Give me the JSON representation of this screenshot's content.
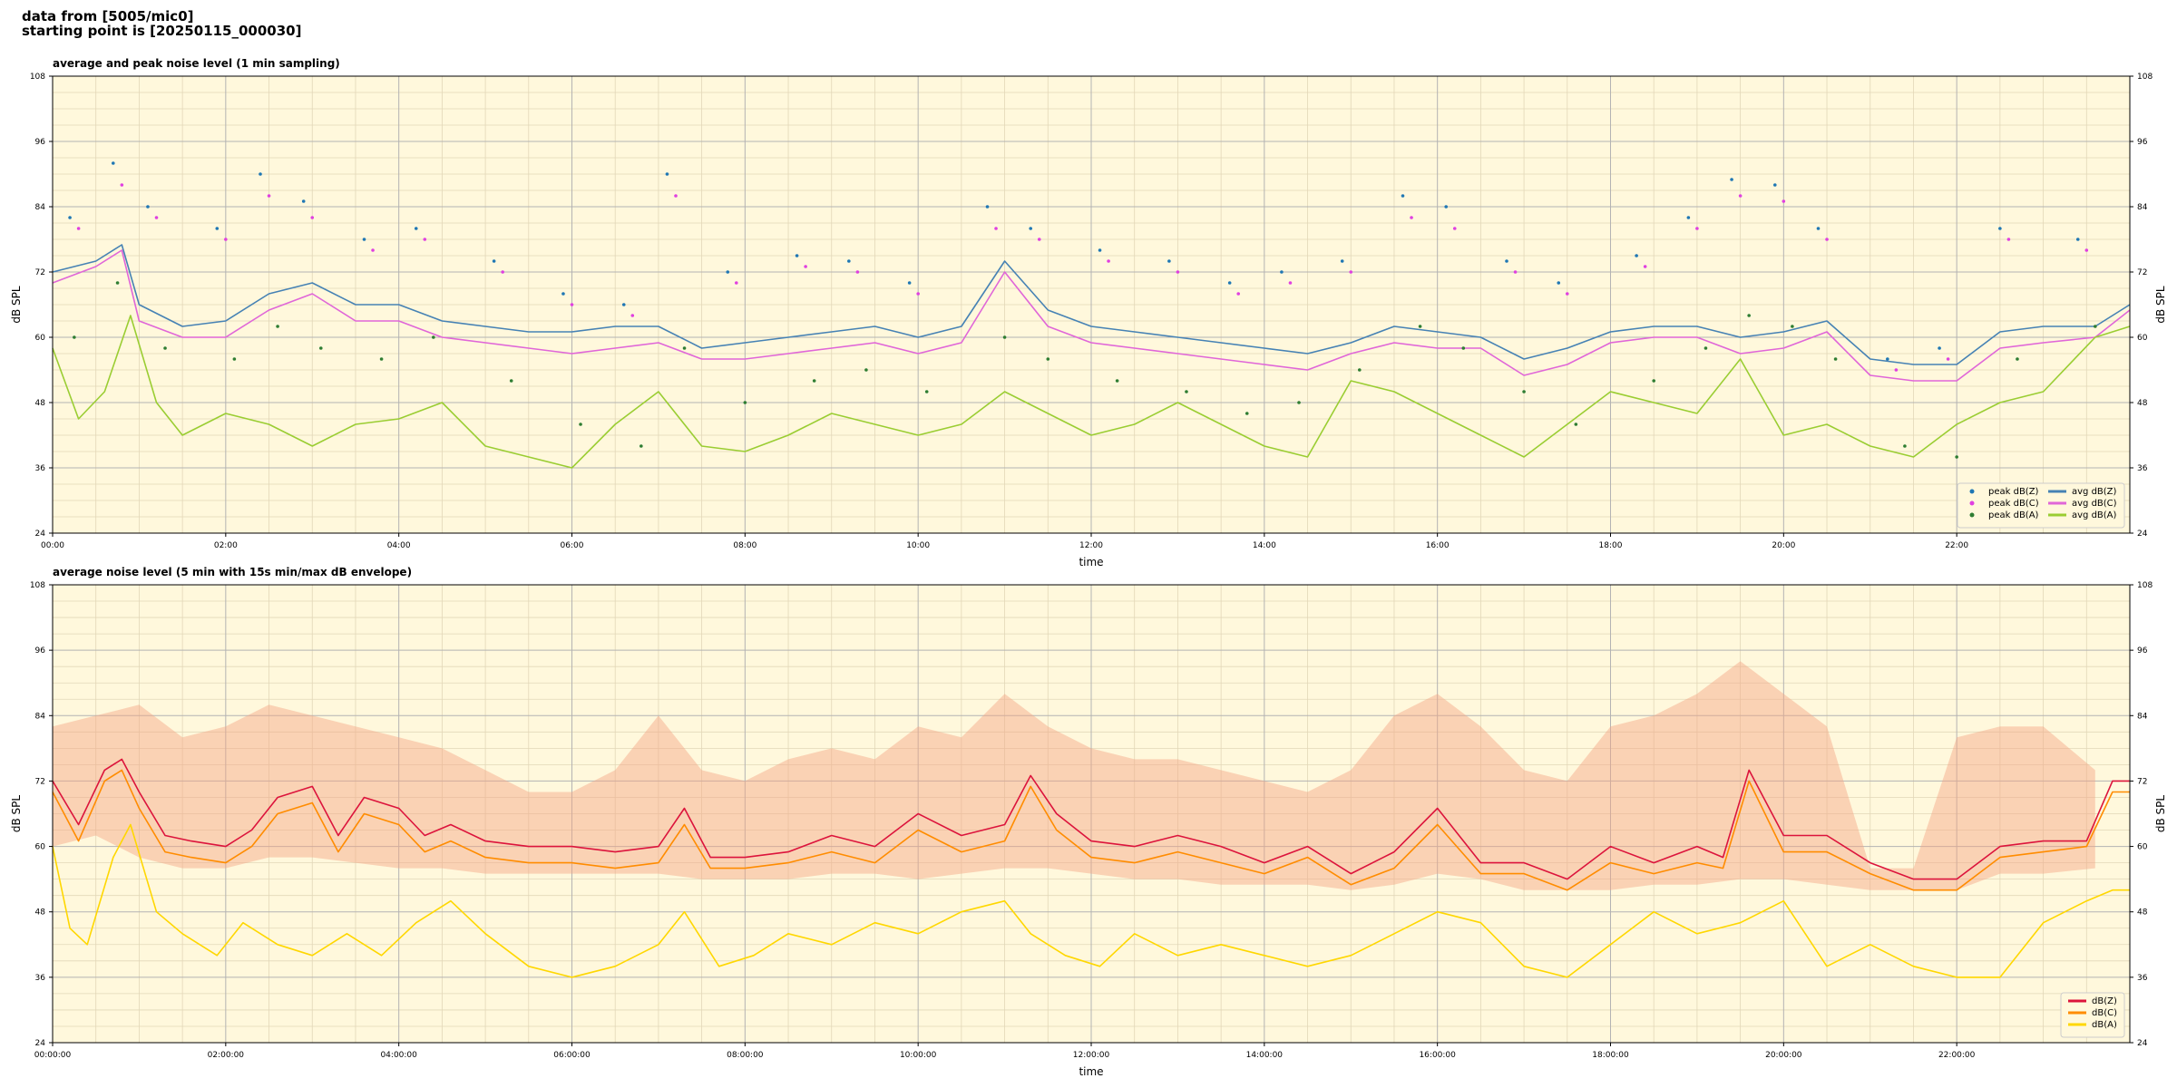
{
  "header": {
    "line1": "data from [5005/mic0]",
    "line2": "starting point is [20250115_000030]"
  },
  "colors": {
    "plot_bg": "#fff8dc",
    "peak_z": "#1f77b4",
    "peak_c": "#e040e0",
    "peak_a": "#2e7d32",
    "avg_z": "#4682b4",
    "avg_c": "#e066d8",
    "avg_a": "#9acd32",
    "dbz": "#dc143c",
    "dbc": "#ff8c00",
    "dba": "#ffd700",
    "envelope": "#f4a582"
  },
  "chart_data": [
    {
      "type": "scatter+line",
      "title": "average and peak noise level (1 min sampling)",
      "xlabel": "time",
      "ylabel": "dB SPL",
      "ylim": [
        24,
        108
      ],
      "xlim_hours": [
        0,
        24
      ],
      "yticks": [
        "24",
        "36",
        "48",
        "60",
        "72",
        "84",
        "96",
        "108"
      ],
      "xticks": [
        "00:00",
        "02:00",
        "04:00",
        "06:00",
        "08:00",
        "10:00",
        "12:00",
        "14:00",
        "16:00",
        "18:00",
        "20:00",
        "22:00"
      ],
      "grid": true,
      "legend_position": "lower-right",
      "legend": [
        "peak dB(Z)",
        "peak dB(C)",
        "peak dB(A)",
        "avg dB(Z)",
        "avg dB(C)",
        "avg dB(A)"
      ],
      "series": [
        {
          "name": "avg dB(Z)",
          "x": [
            0,
            0.5,
            0.8,
            1,
            1.5,
            2,
            2.5,
            3,
            3.5,
            4,
            4.5,
            5,
            5.5,
            6,
            6.5,
            7,
            7.5,
            8,
            8.5,
            9,
            9.5,
            10,
            10.5,
            11,
            11.5,
            12,
            12.5,
            13,
            13.5,
            14,
            14.5,
            15,
            15.5,
            16,
            16.5,
            17,
            17.5,
            18,
            18.5,
            19,
            19.5,
            20,
            20.5,
            21,
            21.5,
            22,
            22.5,
            23,
            23.6,
            24
          ],
          "y": [
            72,
            74,
            77,
            66,
            62,
            63,
            68,
            70,
            66,
            66,
            63,
            62,
            61,
            61,
            62,
            62,
            58,
            59,
            60,
            61,
            62,
            60,
            62,
            74,
            65,
            62,
            61,
            60,
            59,
            58,
            57,
            59,
            62,
            61,
            60,
            56,
            58,
            61,
            62,
            62,
            60,
            61,
            63,
            56,
            55,
            55,
            61,
            62,
            62,
            66
          ]
        },
        {
          "name": "avg dB(C)",
          "x": [
            0,
            0.5,
            0.8,
            1,
            1.5,
            2,
            2.5,
            3,
            3.5,
            4,
            4.5,
            5,
            5.5,
            6,
            6.5,
            7,
            7.5,
            8,
            8.5,
            9,
            9.5,
            10,
            10.5,
            11,
            11.5,
            12,
            12.5,
            13,
            13.5,
            14,
            14.5,
            15,
            15.5,
            16,
            16.5,
            17,
            17.5,
            18,
            18.5,
            19,
            19.5,
            20,
            20.5,
            21,
            21.5,
            22,
            22.5,
            23,
            23.6,
            24
          ],
          "y": [
            70,
            73,
            76,
            63,
            60,
            60,
            65,
            68,
            63,
            63,
            60,
            59,
            58,
            57,
            58,
            59,
            56,
            56,
            57,
            58,
            59,
            57,
            59,
            72,
            62,
            59,
            58,
            57,
            56,
            55,
            54,
            57,
            59,
            58,
            58,
            53,
            55,
            59,
            60,
            60,
            57,
            58,
            61,
            53,
            52,
            52,
            58,
            59,
            60,
            65
          ]
        },
        {
          "name": "avg dB(A)",
          "x": [
            0,
            0.3,
            0.6,
            0.9,
            1.2,
            1.5,
            2,
            2.5,
            3,
            3.5,
            4,
            4.5,
            5,
            5.5,
            6,
            6.5,
            7,
            7.5,
            8,
            8.5,
            9,
            9.5,
            10,
            10.5,
            11,
            11.5,
            12,
            12.5,
            13,
            13.5,
            14,
            14.5,
            15,
            15.5,
            16,
            16.5,
            17,
            17.5,
            18,
            18.5,
            19,
            19.5,
            20,
            20.5,
            21,
            21.5,
            22,
            22.5,
            23,
            23.6,
            24
          ],
          "y": [
            58,
            45,
            50,
            64,
            48,
            42,
            46,
            44,
            40,
            44,
            45,
            48,
            40,
            38,
            36,
            44,
            50,
            40,
            39,
            42,
            46,
            44,
            42,
            44,
            50,
            46,
            42,
            44,
            48,
            44,
            40,
            38,
            52,
            50,
            46,
            42,
            38,
            44,
            50,
            48,
            46,
            56,
            42,
            44,
            40,
            38,
            44,
            48,
            50,
            60,
            62
          ]
        },
        {
          "name": "peak dB(Z)",
          "x": [
            0.2,
            0.7,
            1.1,
            1.9,
            2.4,
            2.9,
            3.6,
            4.2,
            5.1,
            5.9,
            6.6,
            7.1,
            7.8,
            8.6,
            9.2,
            9.9,
            10.8,
            11.3,
            12.1,
            12.9,
            13.6,
            14.2,
            14.9,
            15.6,
            16.1,
            16.8,
            17.4,
            18.3,
            18.9,
            19.4,
            19.9,
            20.4,
            21.2,
            21.8,
            22.5,
            23.4
          ],
          "y": [
            82,
            92,
            84,
            80,
            90,
            85,
            78,
            80,
            74,
            68,
            66,
            90,
            72,
            75,
            74,
            70,
            84,
            80,
            76,
            74,
            70,
            72,
            74,
            86,
            84,
            74,
            70,
            75,
            82,
            89,
            88,
            80,
            56,
            58,
            80,
            78
          ]
        },
        {
          "name": "peak dB(C)",
          "x": [
            0.3,
            0.8,
            1.2,
            2,
            2.5,
            3,
            3.7,
            4.3,
            5.2,
            6,
            6.7,
            7.2,
            7.9,
            8.7,
            9.3,
            10,
            10.9,
            11.4,
            12.2,
            13,
            13.7,
            14.3,
            15,
            15.7,
            16.2,
            16.9,
            17.5,
            18.4,
            19,
            19.5,
            20,
            20.5,
            21.3,
            21.9,
            22.6,
            23.5
          ],
          "y": [
            80,
            88,
            82,
            78,
            86,
            82,
            76,
            78,
            72,
            66,
            64,
            86,
            70,
            73,
            72,
            68,
            80,
            78,
            74,
            72,
            68,
            70,
            72,
            82,
            80,
            72,
            68,
            73,
            80,
            86,
            85,
            78,
            54,
            56,
            78,
            76
          ]
        },
        {
          "name": "peak dB(A)",
          "x": [
            0.25,
            0.75,
            1.3,
            2.1,
            2.6,
            3.1,
            3.8,
            4.4,
            5.3,
            6.1,
            6.8,
            7.3,
            8,
            8.8,
            9.4,
            10.1,
            11,
            11.5,
            12.3,
            13.1,
            13.8,
            14.4,
            15.1,
            15.8,
            16.3,
            17,
            17.6,
            18.5,
            19.1,
            19.6,
            20.1,
            20.6,
            21.4,
            22,
            22.7,
            23.6
          ],
          "y": [
            60,
            70,
            58,
            56,
            62,
            58,
            56,
            60,
            52,
            44,
            40,
            58,
            48,
            52,
            54,
            50,
            60,
            56,
            52,
            50,
            46,
            48,
            54,
            62,
            58,
            50,
            44,
            52,
            58,
            64,
            62,
            56,
            40,
            38,
            56,
            62
          ]
        }
      ]
    },
    {
      "type": "line+area",
      "title": "average noise level (5 min with 15s min/max dB envelope)",
      "xlabel": "time",
      "ylabel": "dB SPL",
      "ylim": [
        24,
        108
      ],
      "xlim_hours": [
        0,
        24
      ],
      "yticks": [
        "24",
        "36",
        "48",
        "60",
        "72",
        "84",
        "96",
        "108"
      ],
      "xticks": [
        "00:00:00",
        "02:00:00",
        "04:00:00",
        "06:00:00",
        "08:00:00",
        "10:00:00",
        "12:00:00",
        "14:00:00",
        "16:00:00",
        "18:00:00",
        "20:00:00",
        "22:00:00"
      ],
      "grid": true,
      "legend_position": "lower-right",
      "legend": [
        "dB(Z)",
        "dB(C)",
        "dB(A)"
      ],
      "series": [
        {
          "name": "dB(Z)",
          "x": [
            0,
            0.3,
            0.6,
            0.8,
            1,
            1.3,
            1.6,
            2,
            2.3,
            2.6,
            3,
            3.3,
            3.6,
            4,
            4.3,
            4.6,
            5,
            5.5,
            6,
            6.5,
            7,
            7.3,
            7.6,
            8,
            8.5,
            9,
            9.5,
            10,
            10.5,
            11,
            11.3,
            11.6,
            12,
            12.5,
            13,
            13.5,
            14,
            14.5,
            15,
            15.5,
            16,
            16.5,
            17,
            17.5,
            18,
            18.5,
            19,
            19.3,
            19.6,
            20,
            20.5,
            21,
            21.5,
            22,
            22.5,
            23,
            23.5,
            23.8,
            24
          ],
          "y": [
            72,
            64,
            74,
            76,
            70,
            62,
            61,
            60,
            63,
            69,
            71,
            62,
            69,
            67,
            62,
            64,
            61,
            60,
            60,
            59,
            60,
            67,
            58,
            58,
            59,
            62,
            60,
            66,
            62,
            64,
            73,
            66,
            61,
            60,
            62,
            60,
            57,
            60,
            55,
            59,
            67,
            57,
            57,
            54,
            60,
            57,
            60,
            58,
            74,
            62,
            62,
            57,
            54,
            54,
            60,
            61,
            61,
            72,
            72
          ]
        },
        {
          "name": "dB(C)",
          "x": [
            0,
            0.3,
            0.6,
            0.8,
            1,
            1.3,
            1.6,
            2,
            2.3,
            2.6,
            3,
            3.3,
            3.6,
            4,
            4.3,
            4.6,
            5,
            5.5,
            6,
            6.5,
            7,
            7.3,
            7.6,
            8,
            8.5,
            9,
            9.5,
            10,
            10.5,
            11,
            11.3,
            11.6,
            12,
            12.5,
            13,
            13.5,
            14,
            14.5,
            15,
            15.5,
            16,
            16.5,
            17,
            17.5,
            18,
            18.5,
            19,
            19.3,
            19.6,
            20,
            20.5,
            21,
            21.5,
            22,
            22.5,
            23,
            23.5,
            23.8,
            24
          ],
          "y": [
            70,
            61,
            72,
            74,
            67,
            59,
            58,
            57,
            60,
            66,
            68,
            59,
            66,
            64,
            59,
            61,
            58,
            57,
            57,
            56,
            57,
            64,
            56,
            56,
            57,
            59,
            57,
            63,
            59,
            61,
            71,
            63,
            58,
            57,
            59,
            57,
            55,
            58,
            53,
            56,
            64,
            55,
            55,
            52,
            57,
            55,
            57,
            56,
            72,
            59,
            59,
            55,
            52,
            52,
            58,
            59,
            60,
            70,
            70
          ]
        },
        {
          "name": "dB(A)",
          "x": [
            0,
            0.2,
            0.4,
            0.7,
            0.9,
            1.2,
            1.5,
            1.9,
            2.2,
            2.6,
            3,
            3.4,
            3.8,
            4.2,
            4.6,
            5,
            5.5,
            6,
            6.5,
            7,
            7.3,
            7.7,
            8.1,
            8.5,
            9,
            9.5,
            10,
            10.5,
            11,
            11.3,
            11.7,
            12.1,
            12.5,
            13,
            13.5,
            14,
            14.5,
            15,
            15.5,
            16,
            16.5,
            17,
            17.5,
            18,
            18.5,
            19,
            19.5,
            20,
            20.5,
            21,
            21.5,
            22,
            22.5,
            23,
            23.5,
            23.8,
            24
          ],
          "y": [
            60,
            45,
            42,
            58,
            64,
            48,
            44,
            40,
            46,
            42,
            40,
            44,
            40,
            46,
            50,
            44,
            38,
            36,
            38,
            42,
            48,
            38,
            40,
            44,
            42,
            46,
            44,
            48,
            50,
            44,
            40,
            38,
            44,
            40,
            42,
            40,
            38,
            40,
            44,
            48,
            46,
            38,
            36,
            42,
            48,
            44,
            46,
            50,
            38,
            42,
            38,
            36,
            36,
            46,
            50,
            52,
            52
          ]
        }
      ],
      "envelope": {
        "x": [
          0,
          0.5,
          1,
          1.5,
          2,
          2.5,
          3,
          3.5,
          4,
          4.5,
          5,
          5.5,
          6,
          6.5,
          7,
          7.5,
          8,
          8.5,
          9,
          9.5,
          10,
          10.5,
          11,
          11.5,
          12,
          12.5,
          13,
          13.5,
          14,
          14.5,
          15,
          15.5,
          16,
          16.5,
          17,
          17.5,
          18,
          18.5,
          19,
          19.5,
          20,
          20.5,
          21,
          21.5,
          22,
          22.5,
          23,
          23.6
        ],
        "min": [
          60,
          62,
          58,
          56,
          56,
          58,
          58,
          57,
          56,
          56,
          55,
          55,
          55,
          55,
          55,
          54,
          54,
          54,
          55,
          55,
          54,
          55,
          56,
          56,
          55,
          54,
          54,
          53,
          53,
          53,
          52,
          53,
          55,
          54,
          52,
          52,
          52,
          53,
          53,
          54,
          54,
          53,
          52,
          52,
          52,
          55,
          55,
          56
        ],
        "max": [
          82,
          84,
          86,
          80,
          82,
          86,
          84,
          82,
          80,
          78,
          74,
          70,
          70,
          74,
          84,
          74,
          72,
          76,
          78,
          76,
          82,
          80,
          88,
          82,
          78,
          76,
          76,
          74,
          72,
          70,
          74,
          84,
          88,
          82,
          74,
          72,
          82,
          84,
          88,
          94,
          88,
          82,
          56,
          56,
          80,
          82,
          82,
          74
        ]
      }
    }
  ]
}
